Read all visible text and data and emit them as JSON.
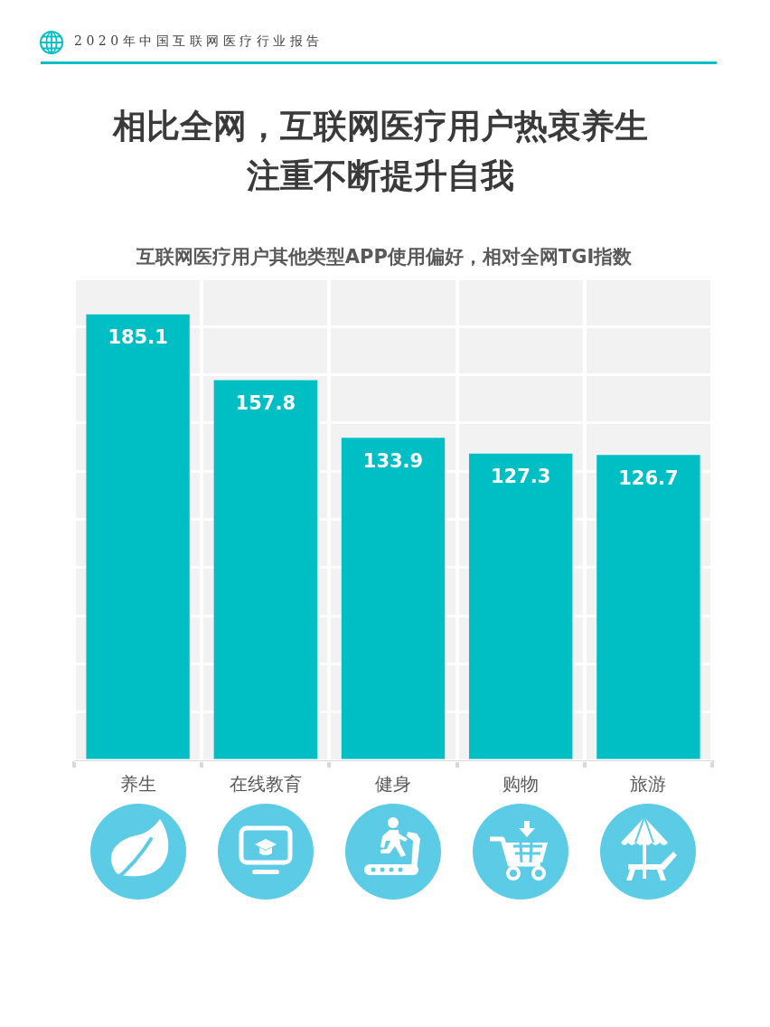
{
  "chart_data": {
    "type": "bar",
    "title": "相比全网，互联网医疗用户热衷养生注重不断提升自我",
    "subtitle": "互联网医疗用户其他类型APP使用偏好，相对全网TGI指数",
    "annotations": [
      "2020年中国互联网医疗行业报告"
    ],
    "categories": [
      "养生",
      "在线教育",
      "健身",
      "购物",
      "旅游"
    ],
    "values": [
      185.1,
      157.8,
      133.9,
      127.3,
      126.7
    ],
    "color": "#00bfc4",
    "data_labels": true,
    "ylim": [
      0,
      200
    ],
    "yticks": [
      {
        "value": 0,
        "label": null
      },
      {
        "value": 20,
        "label": null
      },
      {
        "value": 40,
        "label": null
      },
      {
        "value": 60,
        "label": null
      },
      {
        "value": 80,
        "label": null
      },
      {
        "value": 100,
        "label": null
      },
      {
        "value": 120,
        "label": null
      },
      {
        "value": 140,
        "label": null
      },
      {
        "value": 160,
        "label": null
      },
      {
        "value": 180,
        "label": null
      },
      {
        "value": 200,
        "label": null
      }
    ],
    "tick_labels": "x",
    "grid": true
  }
}
